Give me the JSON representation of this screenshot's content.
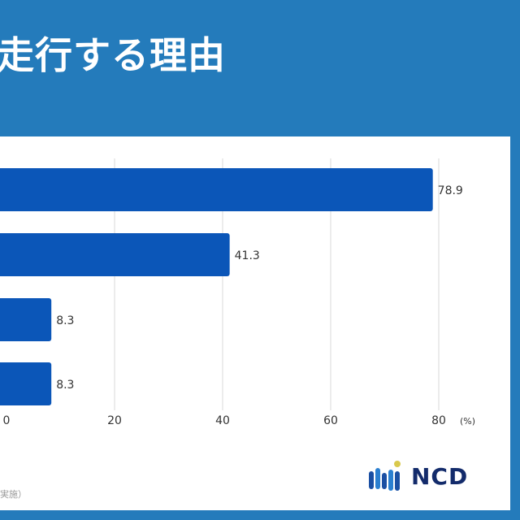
{
  "title": "走行する理由",
  "note": "実施）",
  "logo_text": "NCD",
  "colors": {
    "background": "#247bbb",
    "bar": "#0b56b8",
    "grid": "#d9d9d9"
  },
  "chart_data": {
    "type": "bar",
    "orientation": "horizontal",
    "categories": [
      "",
      "",
      "",
      ""
    ],
    "values": [
      78.9,
      41.3,
      8.3,
      8.3
    ],
    "data_labels": [
      "78.9",
      "41.3",
      "8.3",
      "8.3"
    ],
    "xlim": [
      0,
      80
    ],
    "x_ticks": [
      "0",
      "20",
      "40",
      "60",
      "80"
    ],
    "x_unit": "(%)",
    "grid": true
  }
}
